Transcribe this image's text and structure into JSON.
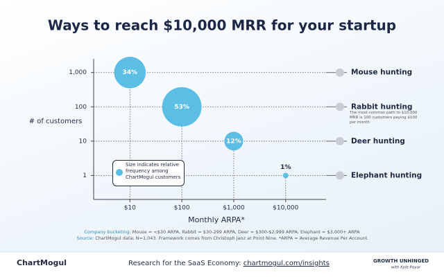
{
  "chart_data": {
    "type": "bubble",
    "title": "Ways to reach $10,000 MRR for your startup",
    "x_label": "Monthly ARPA*",
    "y_label": "# of customers",
    "x_scale": "log",
    "y_scale": "log",
    "xlim": [
      2,
      60000
    ],
    "ylim": [
      0.2,
      2500
    ],
    "xticks": [
      {
        "value": 10,
        "label": "$10"
      },
      {
        "value": 100,
        "label": "$100"
      },
      {
        "value": 1000,
        "label": "$1,000"
      },
      {
        "value": 10000,
        "label": "$10,000"
      }
    ],
    "yticks": [
      1,
      10,
      100,
      {
        "value": 1000,
        "label": "1,000"
      }
    ],
    "color": "#5cbde5",
    "categories": [
      "Mouse hunting",
      "Rabbit hunting",
      "Deer hunting",
      "Elephant hunting"
    ],
    "x": [
      10,
      100,
      1000,
      10000
    ],
    "y": [
      1000,
      100,
      10,
      1
    ],
    "size": [
      34,
      53,
      12,
      1
    ],
    "value_labels": [
      "34%",
      "53%",
      "12%",
      "1%"
    ],
    "annotation": "The most common path to $10,000 MRR is 100 customers paying $100 per month",
    "size_legend": "Size indicates relative frequency among ChartMogul customers"
  },
  "notes": [
    {
      "label": "Company bucketing:",
      "text": "Mouse = <$30 ARPA, Rabbit = $30-299 ARPA, Deer = $300-$2,999 ARPA, Elephant = $3,000+ ARPA"
    },
    {
      "label": "Source:",
      "text": "ChartMogul data; N=1,043. Framework comes from Christoph Janz at Point Nine. *ARPA = Average Revenue Per Account"
    }
  ],
  "footer": {
    "brand": "ChartMogul",
    "tagline": "Research for the SaaS Economy:",
    "link": "chartmogul.com/insights",
    "partner": "GROWTH UNHINGED",
    "partner_sub": "with Kyle Poyar"
  }
}
